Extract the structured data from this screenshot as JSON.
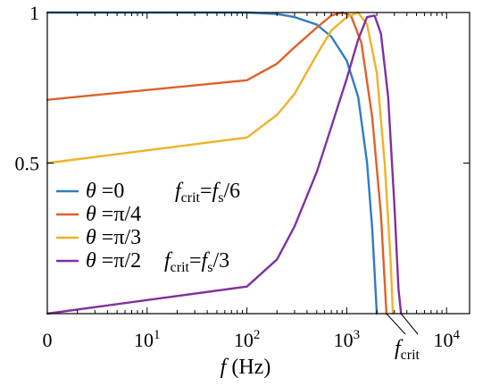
{
  "chart_data": {
    "type": "line",
    "xlabel_var": "f",
    "xlabel_unit": "(Hz)",
    "x_scale": "log",
    "x_ticks": [
      {
        "value": 1,
        "base": "0",
        "exp": ""
      },
      {
        "value": 10,
        "base": "10",
        "exp": "1"
      },
      {
        "value": 100,
        "base": "10",
        "exp": "2"
      },
      {
        "value": 1000,
        "base": "10",
        "exp": "3"
      },
      {
        "value": 10000,
        "base": "10",
        "exp": "4"
      }
    ],
    "y_ticks": [
      {
        "value": 0.5,
        "label": "0.5"
      },
      {
        "value": 1,
        "label": "1"
      }
    ],
    "xlim": [
      1,
      17000
    ],
    "ylim": [
      0,
      1
    ],
    "grid": false,
    "legend_position": "center-left",
    "series": [
      {
        "name": "θ =0",
        "theta_label": "θ",
        "value_label": "=0",
        "color": "#2f7cc4",
        "annotation": {
          "f": "f",
          "crit": "crit",
          "rhs": "=f",
          "s": "s",
          "den": "/6"
        },
        "points": [
          [
            1,
            1.0
          ],
          [
            100,
            1.0
          ],
          [
            200,
            0.995
          ],
          [
            300,
            0.985
          ],
          [
            500,
            0.96
          ],
          [
            700,
            0.92
          ],
          [
            1000,
            0.84
          ],
          [
            1300,
            0.72
          ],
          [
            1600,
            0.5
          ],
          [
            1800,
            0.28
          ],
          [
            2000,
            0.0
          ]
        ]
      },
      {
        "name": "θ =π/4",
        "theta_label": "θ",
        "value_label": "=π/4",
        "color": "#de6128",
        "points": [
          [
            1,
            0.71
          ],
          [
            100,
            0.775
          ],
          [
            200,
            0.83
          ],
          [
            300,
            0.885
          ],
          [
            500,
            0.95
          ],
          [
            700,
            0.99
          ],
          [
            900,
            1.0
          ],
          [
            1100,
            0.99
          ],
          [
            1400,
            0.9
          ],
          [
            1800,
            0.65
          ],
          [
            2200,
            0.33
          ],
          [
            2500,
            0.0
          ]
        ]
      },
      {
        "name": "θ =π/3",
        "theta_label": "θ",
        "value_label": "=π/3",
        "color": "#f0b128",
        "points": [
          [
            1,
            0.5
          ],
          [
            100,
            0.585
          ],
          [
            200,
            0.66
          ],
          [
            300,
            0.73
          ],
          [
            500,
            0.86
          ],
          [
            700,
            0.94
          ],
          [
            1000,
            0.985
          ],
          [
            1300,
            1.0
          ],
          [
            1600,
            0.96
          ],
          [
            2000,
            0.8
          ],
          [
            2400,
            0.5
          ],
          [
            2750,
            0.18
          ],
          [
            2900,
            0.0
          ]
        ]
      },
      {
        "name": "θ =π/2",
        "theta_label": "θ",
        "value_label": "=π/2",
        "color": "#8030a0",
        "annotation": {
          "f": "f",
          "crit": "crit",
          "rhs": "=f",
          "s": "s",
          "den": "/3"
        },
        "points": [
          [
            1,
            0.0
          ],
          [
            100,
            0.09
          ],
          [
            200,
            0.18
          ],
          [
            300,
            0.29
          ],
          [
            500,
            0.47
          ],
          [
            700,
            0.62
          ],
          [
            1000,
            0.78
          ],
          [
            1300,
            0.91
          ],
          [
            1600,
            0.985
          ],
          [
            1900,
            0.99
          ],
          [
            2200,
            0.93
          ],
          [
            2600,
            0.72
          ],
          [
            3000,
            0.36
          ],
          [
            3300,
            0.08
          ],
          [
            3500,
            0.0
          ]
        ]
      }
    ],
    "annotations": [
      {
        "var": "f",
        "sub": "crit",
        "x": 2700
      }
    ]
  }
}
